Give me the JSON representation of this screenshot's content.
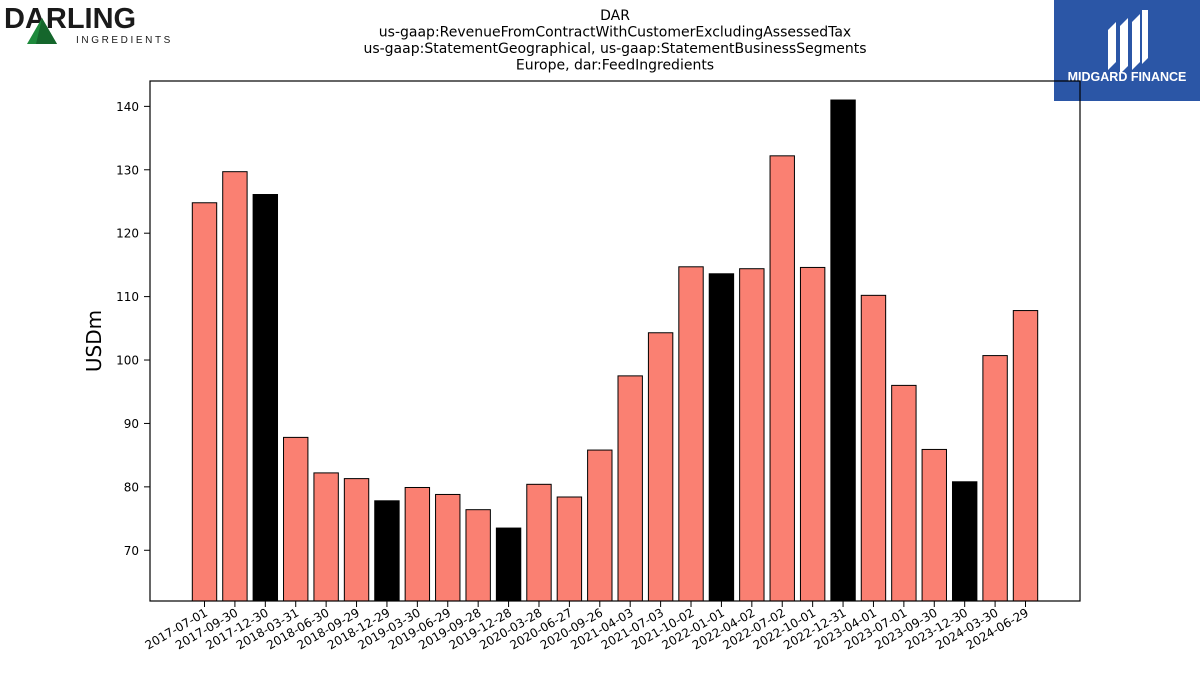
{
  "logos": {
    "left": {
      "name": "DARLING",
      "sub": "INGREDIENTS",
      "accent": "#1e8a3c"
    },
    "right": {
      "name": "MIDGARD FINANCE",
      "bg": "#2b56a6"
    }
  },
  "chart_data": {
    "type": "bar",
    "title_lines": [
      "DAR",
      "us-gaap:RevenueFromContractWithCustomerExcludingAssessedTax",
      "us-gaap:StatementGeographical, us-gaap:StatementBusinessSegments",
      "Europe, dar:FeedIngredients"
    ],
    "ylabel": "USDm",
    "ylim": [
      62,
      144
    ],
    "yticks": [
      70,
      80,
      90,
      100,
      110,
      120,
      130,
      140
    ],
    "colors": {
      "normal": "#fa8072",
      "highlight": "#000000",
      "edge": "#000000"
    },
    "categories": [
      "2017-07-01",
      "2017-09-30",
      "2017-12-30",
      "2018-03-31",
      "2018-06-30",
      "2018-09-29",
      "2018-12-29",
      "2019-03-30",
      "2019-06-29",
      "2019-09-28",
      "2019-12-28",
      "2020-03-28",
      "2020-06-27",
      "2020-09-26",
      "2021-04-03",
      "2021-07-03",
      "2021-10-02",
      "2022-01-01",
      "2022-04-02",
      "2022-07-02",
      "2022-10-01",
      "2022-12-31",
      "2023-04-01",
      "2023-07-01",
      "2023-09-30",
      "2023-12-30",
      "2024-03-30",
      "2024-06-29"
    ],
    "values": [
      124.8,
      129.7,
      126.1,
      87.8,
      82.2,
      81.3,
      77.8,
      79.9,
      78.8,
      76.4,
      73.5,
      80.4,
      78.4,
      85.8,
      97.5,
      104.3,
      114.7,
      113.6,
      114.4,
      132.2,
      114.6,
      141.0,
      110.2,
      96.0,
      85.9,
      80.8,
      100.7,
      107.8
    ],
    "highlight": [
      false,
      false,
      true,
      false,
      false,
      false,
      true,
      false,
      false,
      false,
      true,
      false,
      false,
      false,
      false,
      false,
      false,
      true,
      false,
      false,
      false,
      true,
      false,
      false,
      false,
      true,
      false,
      false
    ]
  }
}
